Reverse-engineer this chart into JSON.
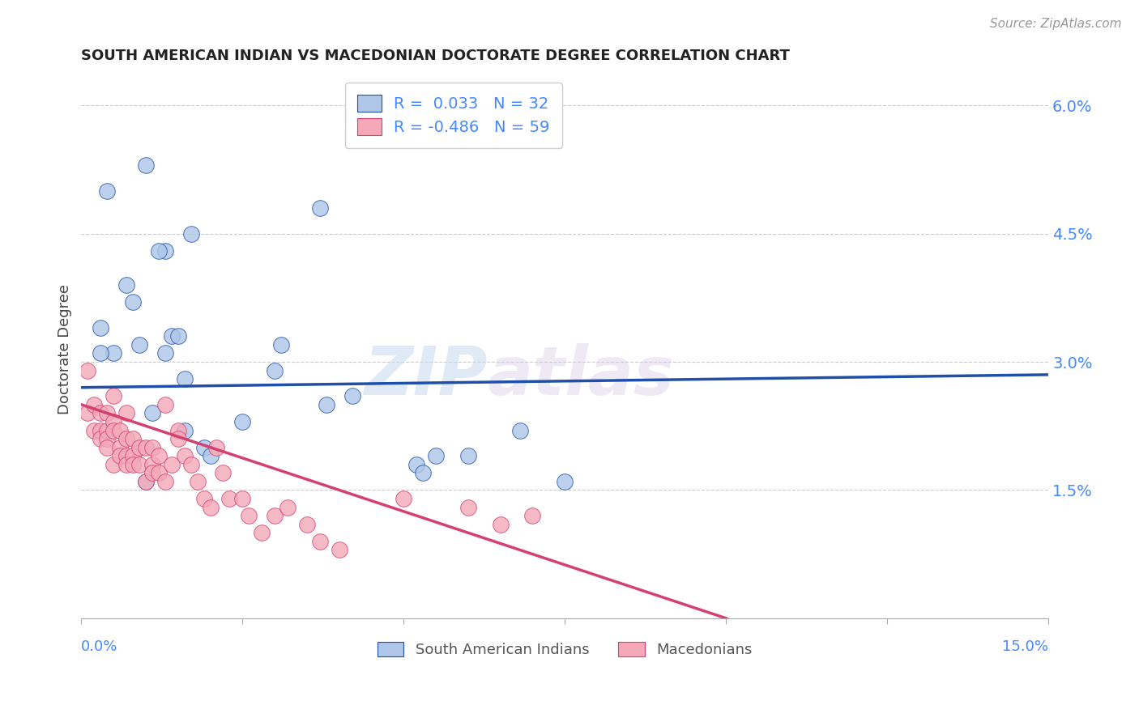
{
  "title": "SOUTH AMERICAN INDIAN VS MACEDONIAN DOCTORATE DEGREE CORRELATION CHART",
  "source": "Source: ZipAtlas.com",
  "ylabel": "Doctorate Degree",
  "yticks": [
    0.0,
    0.015,
    0.03,
    0.045,
    0.06
  ],
  "ytick_labels": [
    "",
    "1.5%",
    "3.0%",
    "4.5%",
    "6.0%"
  ],
  "xlim": [
    0.0,
    0.15
  ],
  "ylim": [
    0.0,
    0.063
  ],
  "blue_R": 0.033,
  "blue_N": 32,
  "pink_R": -0.486,
  "pink_N": 59,
  "blue_color": "#aec6e8",
  "pink_color": "#f4a8b8",
  "line_blue": "#1f4faa",
  "line_pink": "#d44070",
  "blue_scatter_x": [
    0.01,
    0.017,
    0.013,
    0.012,
    0.014,
    0.013,
    0.005,
    0.037,
    0.004,
    0.007,
    0.008,
    0.003,
    0.015,
    0.03,
    0.009,
    0.003,
    0.016,
    0.031,
    0.011,
    0.016,
    0.019,
    0.052,
    0.053,
    0.055,
    0.068,
    0.075,
    0.06,
    0.038,
    0.042,
    0.01,
    0.02,
    0.025
  ],
  "blue_scatter_y": [
    0.053,
    0.045,
    0.043,
    0.043,
    0.033,
    0.031,
    0.031,
    0.048,
    0.05,
    0.039,
    0.037,
    0.034,
    0.033,
    0.029,
    0.032,
    0.031,
    0.028,
    0.032,
    0.024,
    0.022,
    0.02,
    0.018,
    0.017,
    0.019,
    0.022,
    0.016,
    0.019,
    0.025,
    0.026,
    0.016,
    0.019,
    0.023
  ],
  "pink_scatter_x": [
    0.001,
    0.001,
    0.002,
    0.002,
    0.003,
    0.003,
    0.003,
    0.004,
    0.004,
    0.004,
    0.004,
    0.005,
    0.005,
    0.005,
    0.005,
    0.006,
    0.006,
    0.006,
    0.007,
    0.007,
    0.007,
    0.007,
    0.008,
    0.008,
    0.008,
    0.009,
    0.009,
    0.01,
    0.01,
    0.011,
    0.011,
    0.011,
    0.012,
    0.012,
    0.013,
    0.013,
    0.014,
    0.015,
    0.015,
    0.016,
    0.017,
    0.018,
    0.019,
    0.02,
    0.021,
    0.022,
    0.023,
    0.025,
    0.026,
    0.028,
    0.03,
    0.032,
    0.035,
    0.037,
    0.04,
    0.05,
    0.06,
    0.065,
    0.07
  ],
  "pink_scatter_y": [
    0.029,
    0.024,
    0.025,
    0.022,
    0.022,
    0.024,
    0.021,
    0.024,
    0.022,
    0.021,
    0.02,
    0.026,
    0.023,
    0.022,
    0.018,
    0.022,
    0.02,
    0.019,
    0.024,
    0.021,
    0.019,
    0.018,
    0.021,
    0.019,
    0.018,
    0.02,
    0.018,
    0.02,
    0.016,
    0.02,
    0.018,
    0.017,
    0.019,
    0.017,
    0.016,
    0.025,
    0.018,
    0.022,
    0.021,
    0.019,
    0.018,
    0.016,
    0.014,
    0.013,
    0.02,
    0.017,
    0.014,
    0.014,
    0.012,
    0.01,
    0.012,
    0.013,
    0.011,
    0.009,
    0.008,
    0.014,
    0.013,
    0.011,
    0.012
  ],
  "blue_line_x0": 0.0,
  "blue_line_y0": 0.027,
  "blue_line_x1": 0.15,
  "blue_line_y1": 0.0285,
  "pink_line_x0": 0.0,
  "pink_line_y0": 0.025,
  "pink_line_x1": 0.1,
  "pink_line_y1": 0.0,
  "watermark_zip": "ZIP",
  "watermark_atlas": "atlas",
  "legend_labels": [
    "South American Indians",
    "Macedonians"
  ]
}
